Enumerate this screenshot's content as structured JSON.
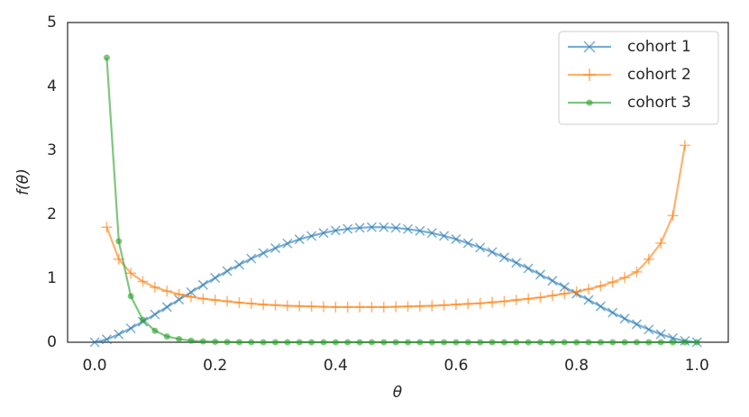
{
  "chart_data": {
    "type": "line",
    "xlabel": "θ",
    "ylabel": "f(θ)",
    "x": [
      0,
      0.02,
      0.04,
      0.06,
      0.08,
      0.1,
      0.12,
      0.14,
      0.16,
      0.18,
      0.2,
      0.22,
      0.24,
      0.26,
      0.28,
      0.3,
      0.32,
      0.34,
      0.36,
      0.38,
      0.4,
      0.42,
      0.44,
      0.46,
      0.48,
      0.5,
      0.52,
      0.54,
      0.56,
      0.58,
      0.6,
      0.62,
      0.64,
      0.66,
      0.68,
      0.7,
      0.72,
      0.74,
      0.76,
      0.78,
      0.8,
      0.82,
      0.84,
      0.86,
      0.88,
      0.9,
      0.92,
      0.94,
      0.96,
      0.98,
      1
    ],
    "series": [
      {
        "name": "cohort 1",
        "color": "#1f77b4",
        "marker": "x",
        "values": [
          0,
          0.045,
          0.123,
          0.218,
          0.323,
          0.435,
          0.55,
          0.667,
          0.783,
          0.897,
          1.006,
          1.113,
          1.212,
          1.308,
          1.394,
          1.472,
          1.544,
          1.61,
          1.662,
          1.709,
          1.747,
          1.772,
          1.79,
          1.8,
          1.799,
          1.789,
          1.769,
          1.742,
          1.708,
          1.663,
          1.612,
          1.549,
          1.481,
          1.41,
          1.327,
          1.242,
          1.155,
          1.057,
          0.962,
          0.864,
          0.76,
          0.661,
          0.561,
          0.463,
          0.369,
          0.281,
          0.199,
          0.126,
          0.065,
          0.021,
          0
        ]
      },
      {
        "name": "cohort 2",
        "color": "#ff7f0e",
        "marker": "plus",
        "values": [
          null,
          1.8,
          1.3,
          1.08,
          0.95,
          0.86,
          0.8,
          0.75,
          0.71,
          0.68,
          0.66,
          0.64,
          0.62,
          0.605,
          0.59,
          0.58,
          0.57,
          0.565,
          0.56,
          0.555,
          0.55,
          0.55,
          0.55,
          0.55,
          0.55,
          0.555,
          0.56,
          0.565,
          0.57,
          0.58,
          0.59,
          0.6,
          0.61,
          0.625,
          0.64,
          0.66,
          0.68,
          0.7,
          0.73,
          0.76,
          0.79,
          0.83,
          0.88,
          0.94,
          1.01,
          1.1,
          1.3,
          1.55,
          1.98,
          3.08,
          null
        ]
      },
      {
        "name": "cohort 3",
        "color": "#2ca02c",
        "marker": "dot",
        "values": [
          null,
          4.45,
          1.58,
          0.72,
          0.35,
          0.18,
          0.09,
          0.05,
          0.025,
          0.013,
          0.007,
          0.004,
          0.002,
          0.001,
          0,
          0,
          0,
          0,
          0,
          0,
          0,
          0,
          0,
          0,
          0,
          0,
          0,
          0,
          0,
          0,
          0,
          0,
          0,
          0,
          0,
          0,
          0,
          0,
          0,
          0,
          0,
          0,
          0,
          0,
          0,
          0,
          0,
          0,
          0,
          0,
          0
        ]
      }
    ],
    "xlim": [
      -0.045,
      1.052
    ],
    "ylim": [
      0,
      5
    ],
    "xticks": [
      {
        "value": 0,
        "label": "0.0"
      },
      {
        "value": 0.2,
        "label": "0.2"
      },
      {
        "value": 0.4,
        "label": "0.4"
      },
      {
        "value": 0.6,
        "label": "0.6"
      },
      {
        "value": 0.8,
        "label": "0.8"
      },
      {
        "value": 1,
        "label": "1.0"
      }
    ],
    "yticks": [
      0,
      1,
      2,
      3,
      4,
      5
    ],
    "legend": "upper right"
  }
}
